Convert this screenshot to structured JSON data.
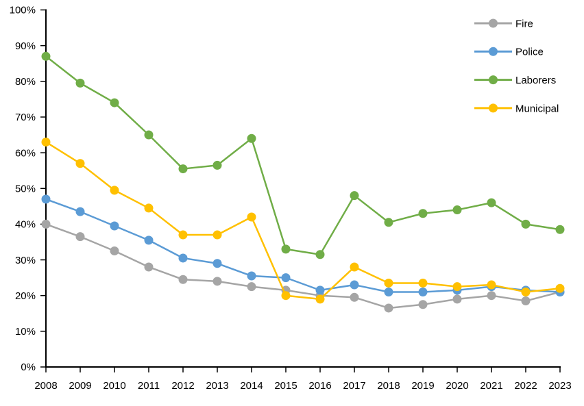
{
  "chart_data": {
    "type": "line",
    "title": "",
    "xlabel": "",
    "ylabel": "",
    "x": [
      "2008",
      "2009",
      "2010",
      "2011",
      "2012",
      "2013",
      "2014",
      "2015",
      "2016",
      "2017",
      "2018",
      "2019",
      "2020",
      "2021",
      "2022",
      "2023"
    ],
    "yticks": [
      "0%",
      "10%",
      "20%",
      "30%",
      "40%",
      "50%",
      "60%",
      "70%",
      "80%",
      "90%",
      "100%"
    ],
    "ylim": [
      0,
      100
    ],
    "grid": false,
    "legend_position": "top-right-inside",
    "axis_color": "#000000",
    "background_color": "#ffffff",
    "series": [
      {
        "name": "Fire",
        "color": "#A5A5A5",
        "values": [
          40,
          36.5,
          32.5,
          28,
          24.5,
          24,
          22.5,
          21.5,
          20,
          19.5,
          16.5,
          17.5,
          19,
          20,
          18.5,
          21
        ]
      },
      {
        "name": "Police",
        "color": "#5B9BD5",
        "values": [
          47,
          43.5,
          39.5,
          35.5,
          30.5,
          29,
          25.5,
          25,
          21.5,
          23,
          21,
          21,
          21.5,
          22.5,
          21.5,
          21
        ]
      },
      {
        "name": "Laborers",
        "color": "#70AD47",
        "values": [
          87,
          79.5,
          74,
          65,
          55.5,
          56.5,
          64,
          33,
          31.5,
          48,
          40.5,
          43,
          44,
          46,
          40,
          38.5
        ]
      },
      {
        "name": "Municipal",
        "color": "#FFC000",
        "values": [
          63,
          57,
          49.5,
          44.5,
          37,
          37,
          42,
          20,
          19,
          28,
          23.5,
          23.5,
          22.5,
          23,
          21,
          22
        ]
      }
    ]
  }
}
